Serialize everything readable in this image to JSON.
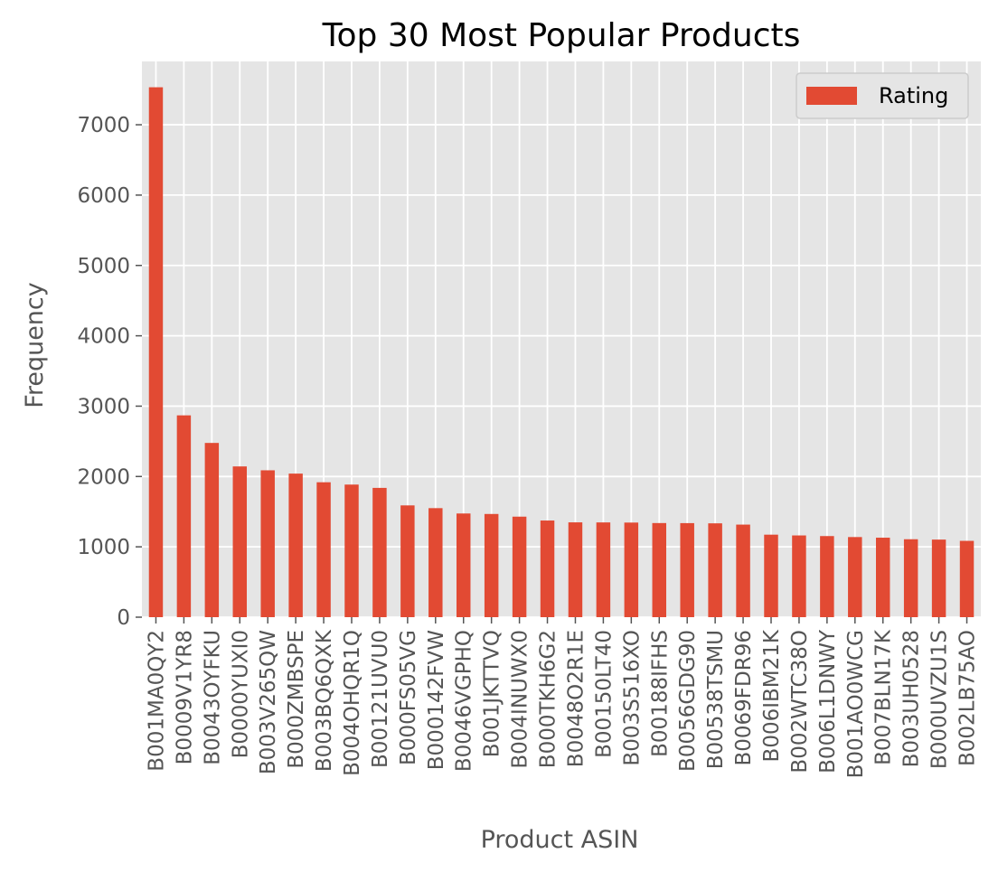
{
  "chart_data": {
    "type": "bar",
    "title": "Top 30 Most Popular Products",
    "xlabel": "Product ASIN",
    "ylabel": "Frequency",
    "ylim": [
      0,
      7900
    ],
    "yticks": [
      0,
      1000,
      2000,
      3000,
      4000,
      5000,
      6000,
      7000
    ],
    "grid": true,
    "legend_position": "top-right",
    "categories": [
      "B001MA0QY2",
      "B0009V1YR8",
      "B0043OYFKU",
      "B0000YUXI0",
      "B003V265QW",
      "B000ZMBSPE",
      "B003BQ6QXK",
      "B004OHQR1Q",
      "B00121UVU0",
      "B000FS05VG",
      "B000142FVW",
      "B0046VGPHQ",
      "B001JKTTVQ",
      "B004INUWX0",
      "B000TKH6G2",
      "B0048O2R1E",
      "B00150LT40",
      "B003S516XO",
      "B00188IFHS",
      "B0056GDG90",
      "B00538TSMU",
      "B0069FDR96",
      "B006IBM21K",
      "B002WTC38O",
      "B006L1DNWY",
      "B001AO0WCG",
      "B007BLN17K",
      "B003UH0528",
      "B000UVZU1S",
      "B002LB75AO"
    ],
    "series": [
      {
        "name": "Rating",
        "color": "#e24a33",
        "values": [
          7533,
          2869,
          2477,
          2143,
          2088,
          2041,
          1918,
          1885,
          1838,
          1589,
          1550,
          1474,
          1467,
          1429,
          1374,
          1348,
          1347,
          1345,
          1338,
          1337,
          1334,
          1316,
          1173,
          1162,
          1153,
          1139,
          1130,
          1108,
          1103,
          1085
        ]
      }
    ]
  }
}
